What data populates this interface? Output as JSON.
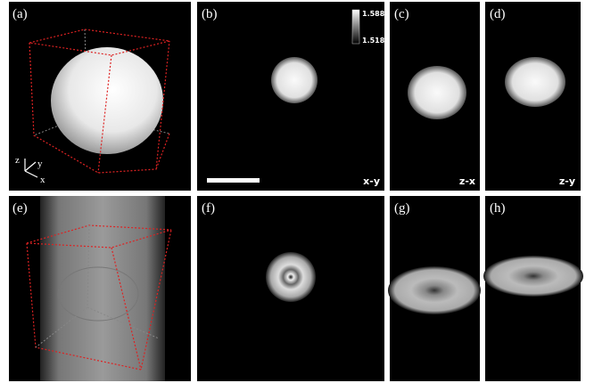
{
  "panels": [
    {
      "label": "(a)"
    },
    {
      "label": "(b)",
      "view": "x-y"
    },
    {
      "label": "(c)",
      "view": "z-x"
    },
    {
      "label": "(d)",
      "view": "z-y"
    },
    {
      "label": "(e)"
    },
    {
      "label": "(f)"
    },
    {
      "label": "(g)"
    },
    {
      "label": "(h)"
    }
  ],
  "colorbar": {
    "max": "1.588",
    "min": "1.518"
  },
  "axes": {
    "z": "z",
    "y": "y",
    "x": "x"
  }
}
